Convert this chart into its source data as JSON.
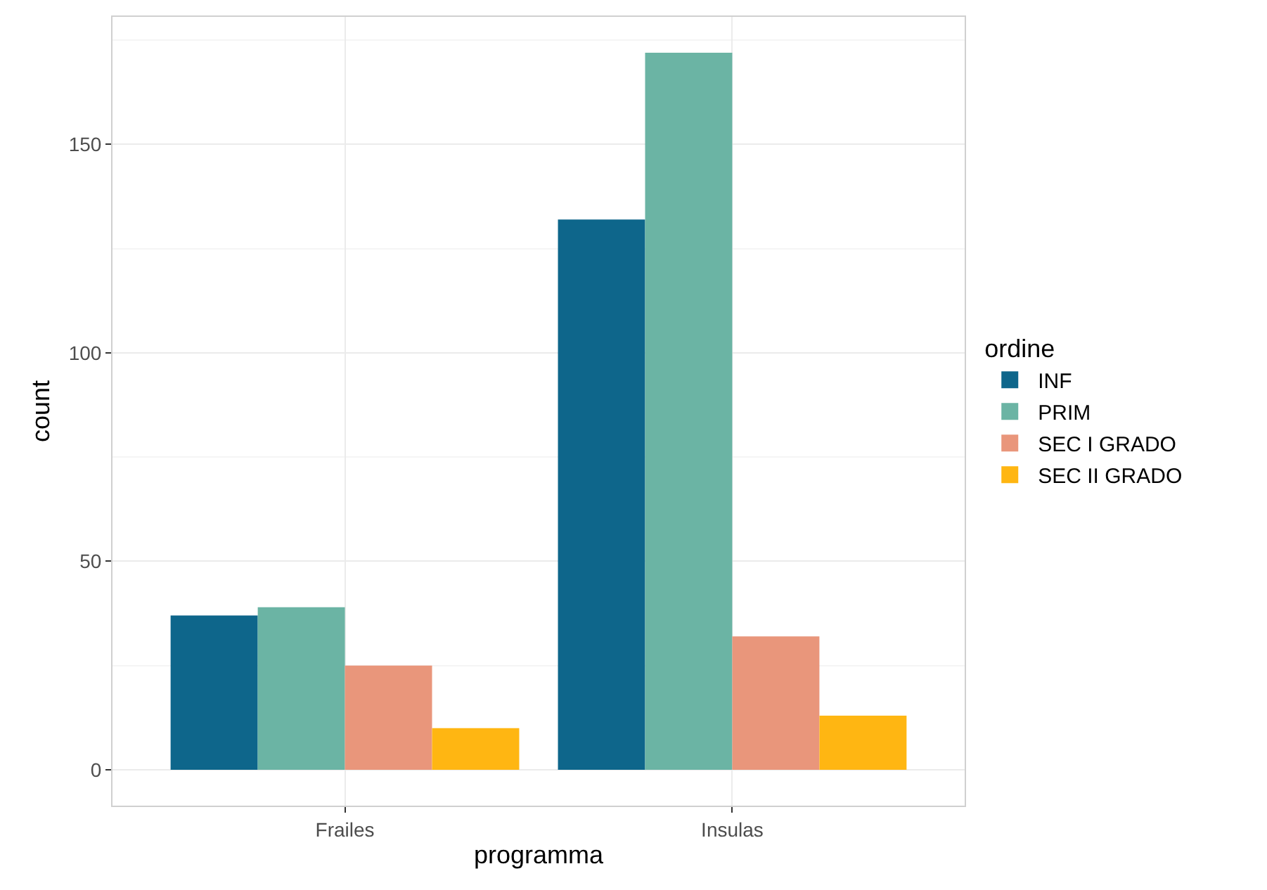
{
  "chart_data": {
    "type": "bar",
    "categories": [
      "Frailes",
      "Insulas"
    ],
    "xlabel": "programma",
    "ylabel": "count",
    "legend_title": "ordine",
    "series": [
      {
        "name": "INF",
        "color": "#0e668b",
        "values": [
          37,
          132
        ]
      },
      {
        "name": "PRIM",
        "color": "#6bb4a4",
        "values": [
          39,
          172
        ]
      },
      {
        "name": "SEC I GRADO",
        "color": "#e9967b",
        "values": [
          25,
          32
        ]
      },
      {
        "name": "SEC II GRADO",
        "color": "#ffb612",
        "values": [
          10,
          13
        ]
      }
    ],
    "ylim": [
      -8.6,
      180.6
    ],
    "yticks": [
      0,
      50,
      100,
      150
    ],
    "grid": true,
    "legend": "right"
  }
}
